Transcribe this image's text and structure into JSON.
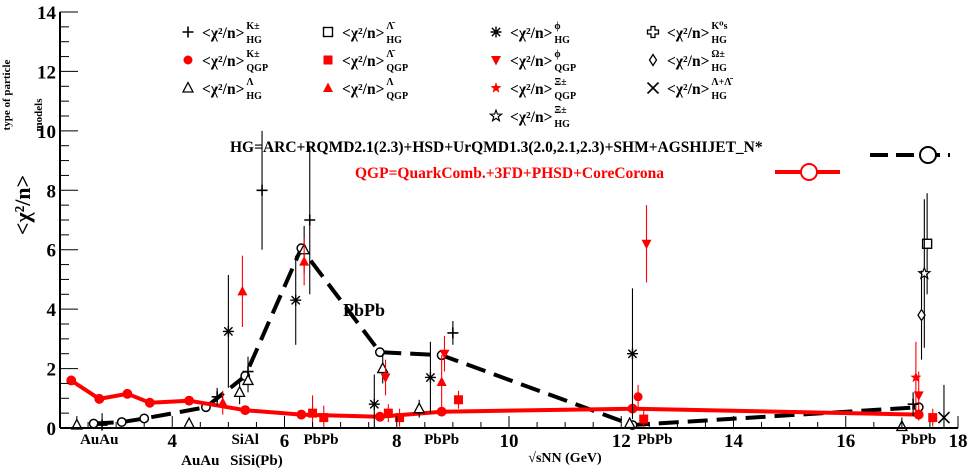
{
  "chart_data": {
    "type": "line",
    "title": "",
    "ylabel": "<χ²/n>",
    "ylabel_sup": "type of particle",
    "ylabel_sub": "models",
    "xlabel": "√sNN (GeV)",
    "xlim": [
      2.0,
      18.0
    ],
    "ylim": [
      0,
      14
    ],
    "x_ticks": [
      4,
      6,
      8,
      10,
      12,
      14,
      16,
      18
    ],
    "y_ticks": [
      0,
      2,
      4,
      6,
      8,
      10,
      12,
      14
    ],
    "system_labels": [
      {
        "text": "AuAu",
        "x": 2.7,
        "row": 1
      },
      {
        "text": "AuAu",
        "x": 4.5,
        "row": 2
      },
      {
        "text": "SiAl",
        "x": 5.3,
        "row": 1
      },
      {
        "text": "SiSi(Pb)",
        "x": 5.5,
        "row": 2
      },
      {
        "text": "PbPb",
        "x": 6.65,
        "row": 1
      },
      {
        "text": "PbPb",
        "x": 8.8,
        "row": 1
      },
      {
        "text": "PbPb",
        "x": 12.6,
        "row": 1
      },
      {
        "text": "PbPb",
        "x": 17.3,
        "row": 1
      }
    ],
    "annotations": {
      "pbpb_label": "PbPb",
      "hg_models": "HG=ARC+RQMD2.1(2.3)+HSD+UrQMD1.3(2.0,2.1,2.3)+SHM+AGSHIJET_N*",
      "qgp_models": "QGP=QuarkComb.+3FD+PHSD+CoreCorona"
    },
    "series": [
      {
        "name": "HG average",
        "style": "dashed",
        "color": "#000000",
        "x": [
          2.6,
          3.1,
          3.5,
          4.6,
          5.3,
          6.3,
          7.7,
          8.8,
          12.2,
          17.3
        ],
        "y": [
          0.15,
          0.2,
          0.32,
          0.7,
          1.75,
          6.05,
          2.55,
          2.45,
          0.1,
          0.7
        ]
      },
      {
        "name": "QGP average",
        "style": "solid",
        "color": "#ff0000",
        "x": [
          2.2,
          2.7,
          3.2,
          3.6,
          4.3,
          5.3,
          6.3,
          7.7,
          8.8,
          12.2,
          17.3
        ],
        "y": [
          1.6,
          0.98,
          1.15,
          0.85,
          0.92,
          0.6,
          0.45,
          0.38,
          0.55,
          0.65,
          0.45
        ]
      }
    ],
    "legend": {
      "placement": "top",
      "entries": [
        {
          "marker": "plus",
          "color": "#000000",
          "base": "<χ²/n>",
          "sup": "K±",
          "sub": "HG"
        },
        {
          "marker": "square-open",
          "color": "#000000",
          "base": "<χ²/n>",
          "sup": "Λ̄",
          "sub": "HG"
        },
        {
          "marker": "asterisk",
          "color": "#000000",
          "base": "<χ²/n>",
          "sup": "ϕ",
          "sub": "HG"
        },
        {
          "marker": "cross-open",
          "color": "#000000",
          "base": "<χ²/n>",
          "sup": "K⁰s",
          "sub": "HG"
        },
        {
          "marker": "circle",
          "color": "#ff0000",
          "base": "<χ²/n>",
          "sup": "K±",
          "sub": "QGP"
        },
        {
          "marker": "square",
          "color": "#ff0000",
          "base": "<χ²/n>",
          "sup": "Λ̄",
          "sub": "QGP"
        },
        {
          "marker": "triangle-down",
          "color": "#ff0000",
          "base": "<χ²/n>",
          "sup": "ϕ",
          "sub": "QGP"
        },
        {
          "marker": "diamond-open",
          "color": "#000000",
          "base": "<χ²/n>",
          "sup": "Ω±",
          "sub": "HG"
        },
        {
          "marker": "triangle-open",
          "color": "#000000",
          "base": "<χ²/n>",
          "sup": "Λ",
          "sub": "HG"
        },
        {
          "marker": "triangle",
          "color": "#ff0000",
          "base": "<χ²/n>",
          "sup": "Λ",
          "sub": "QGP"
        },
        {
          "marker": "star",
          "color": "#ff0000",
          "base": "<χ²/n>",
          "sup": "Ξ±",
          "sub": "QGP"
        },
        {
          "marker": "x",
          "color": "#000000",
          "base": "<χ²/n>",
          "sup": "Λ+Λ̄",
          "sub": "HG"
        },
        {
          "marker": "star-open",
          "color": "#000000",
          "base": "<χ²/n>",
          "sup": "Ξ±",
          "sub": "HG"
        }
      ]
    },
    "points": [
      {
        "x": 5.0,
        "y": 3.25,
        "err": 1.9,
        "marker": "asterisk",
        "color": "#000000"
      },
      {
        "x": 5.6,
        "y": 8.0,
        "err": 2.0,
        "marker": "plus",
        "color": "#000000"
      },
      {
        "x": 5.35,
        "y": 1.9,
        "err": 0.5,
        "marker": "plus",
        "color": "#000000"
      },
      {
        "x": 5.35,
        "y": 1.6,
        "err": 0.4,
        "marker": "triangle-open",
        "color": "#000000"
      },
      {
        "x": 5.25,
        "y": 4.6,
        "err": 1.2,
        "marker": "triangle",
        "color": "#ff0000"
      },
      {
        "x": 4.9,
        "y": 0.85,
        "err": 0.4,
        "marker": "triangle",
        "color": "#ff0000"
      },
      {
        "x": 6.2,
        "y": 4.3,
        "err": 1.5,
        "marker": "asterisk",
        "color": "#000000"
      },
      {
        "x": 6.45,
        "y": 7.0,
        "err": 2.5,
        "marker": "plus",
        "color": "#000000"
      },
      {
        "x": 6.35,
        "y": 6.0,
        "err": 0.8,
        "marker": "triangle-open",
        "color": "#000000"
      },
      {
        "x": 6.35,
        "y": 5.6,
        "err": 0.8,
        "marker": "triangle",
        "color": "#ff0000"
      },
      {
        "x": 6.5,
        "y": 0.5,
        "err": 0.6,
        "marker": "square",
        "color": "#ff0000"
      },
      {
        "x": 6.7,
        "y": 0.35,
        "err": 0.4,
        "marker": "square",
        "color": "#ff0000"
      },
      {
        "x": 7.6,
        "y": 0.8,
        "err": 1.0,
        "marker": "asterisk",
        "color": "#000000"
      },
      {
        "x": 7.75,
        "y": 2.0,
        "err": 0.5,
        "marker": "triangle-open",
        "color": "#000000"
      },
      {
        "x": 7.8,
        "y": 1.7,
        "err": 0.6,
        "marker": "triangle-down",
        "color": "#ff0000"
      },
      {
        "x": 7.85,
        "y": 0.5,
        "err": 0.3,
        "marker": "square",
        "color": "#ff0000"
      },
      {
        "x": 8.05,
        "y": 0.35,
        "err": 0.3,
        "marker": "square",
        "color": "#ff0000"
      },
      {
        "x": 8.6,
        "y": 1.7,
        "err": 1.2,
        "marker": "asterisk",
        "color": "#000000"
      },
      {
        "x": 9.0,
        "y": 3.2,
        "err": 0.4,
        "marker": "plus",
        "color": "#000000"
      },
      {
        "x": 8.85,
        "y": 2.5,
        "err": 0.6,
        "marker": "triangle-down",
        "color": "#ff0000"
      },
      {
        "x": 8.8,
        "y": 1.55,
        "err": 0.9,
        "marker": "triangle",
        "color": "#ff0000"
      },
      {
        "x": 9.1,
        "y": 0.95,
        "err": 0.3,
        "marker": "square",
        "color": "#ff0000"
      },
      {
        "x": 8.4,
        "y": 0.65,
        "err": 0.3,
        "marker": "triangle-open",
        "color": "#000000"
      },
      {
        "x": 12.2,
        "y": 2.5,
        "err": 2.2,
        "marker": "asterisk",
        "color": "#000000"
      },
      {
        "x": 12.3,
        "y": 1.05,
        "err": 0.4,
        "marker": "circle",
        "color": "#ff0000"
      },
      {
        "x": 12.45,
        "y": 6.2,
        "err": 1.3,
        "marker": "triangle-down",
        "color": "#ff0000"
      },
      {
        "x": 12.4,
        "y": 0.3,
        "err": 0.3,
        "marker": "square",
        "color": "#ff0000"
      },
      {
        "x": 17.0,
        "y": 0.05,
        "err": 0.3,
        "marker": "triangle-open",
        "color": "#000000"
      },
      {
        "x": 17.45,
        "y": 6.2,
        "err": 1.7,
        "marker": "square-open",
        "color": "#000000"
      },
      {
        "x": 17.4,
        "y": 5.2,
        "err": 2.5,
        "marker": "star-open",
        "color": "#000000"
      },
      {
        "x": 17.35,
        "y": 3.8,
        "err": 1.5,
        "marker": "diamond-open",
        "color": "#000000"
      },
      {
        "x": 17.25,
        "y": 1.7,
        "err": 1.2,
        "marker": "star",
        "color": "#ff0000"
      },
      {
        "x": 17.3,
        "y": 1.1,
        "err": 0.8,
        "marker": "triangle-down",
        "color": "#ff0000"
      },
      {
        "x": 17.3,
        "y": 0.45,
        "err": 0.2,
        "marker": "circle",
        "color": "#ff0000"
      },
      {
        "x": 17.55,
        "y": 0.35,
        "err": 0.3,
        "marker": "square",
        "color": "#ff0000"
      },
      {
        "x": 17.75,
        "y": 0.35,
        "err": 1.1,
        "marker": "x",
        "color": "#000000"
      },
      {
        "x": 17.2,
        "y": 0.8,
        "err": 0.4,
        "marker": "plus",
        "color": "#000000"
      },
      {
        "x": 12.15,
        "y": 0.15,
        "err": 0.2,
        "marker": "triangle-open",
        "color": "#000000"
      },
      {
        "x": 4.3,
        "y": 0.15,
        "err": 0.2,
        "marker": "triangle-open",
        "color": "#000000"
      },
      {
        "x": 2.3,
        "y": 0.1,
        "err": 0.3,
        "marker": "triangle-open",
        "color": "#000000"
      },
      {
        "x": 2.75,
        "y": 0.1,
        "err": 0.4,
        "marker": "plus",
        "color": "#000000"
      },
      {
        "x": 4.8,
        "y": 1.05,
        "err": 0.3,
        "marker": "plus",
        "color": "#000000"
      },
      {
        "x": 5.2,
        "y": 1.2,
        "err": 0.4,
        "marker": "triangle-open",
        "color": "#000000"
      }
    ]
  }
}
